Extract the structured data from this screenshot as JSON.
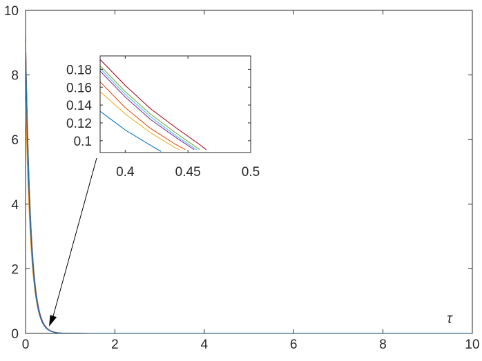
{
  "chart_data": [
    {
      "type": "line",
      "title": "",
      "xlabel": "τ",
      "ylabel": "",
      "xlim": [
        0,
        10
      ],
      "ylim": [
        0,
        10
      ],
      "xticks": [
        0,
        2,
        4,
        6,
        8,
        10
      ],
      "yticks": [
        0,
        2,
        4,
        6,
        8,
        10
      ],
      "grid": false,
      "legend": "none",
      "series_model": "y = y0 * exp(-k * tau)",
      "series": [
        {
          "color": "#a2142f",
          "y0": 9.3,
          "k": 8.38
        },
        {
          "color": "#77ac30",
          "y0": 9.0,
          "k": 8.35
        },
        {
          "color": "#4dbeee",
          "y0": 8.8,
          "k": 8.34
        },
        {
          "color": "#7e2f8e",
          "y0": 8.6,
          "k": 8.33
        },
        {
          "color": "#edb120",
          "y0": 7.2,
          "k": 8.18
        },
        {
          "color": "#d95319",
          "y0": 8.0,
          "k": 8.37
        },
        {
          "color": "#0072bd",
          "y0": 8.7,
          "k": 8.66
        }
      ],
      "x": [
        0,
        0.02,
        0.05,
        0.08,
        0.12,
        0.16,
        0.2,
        0.25,
        0.3,
        0.35,
        0.4,
        0.45,
        0.5,
        0.6,
        0.7,
        0.8,
        1.0,
        1.5,
        2,
        3,
        4,
        5,
        6,
        7,
        8,
        9,
        10
      ]
    },
    {
      "type": "line",
      "title": "",
      "xlim": [
        0.38,
        0.5
      ],
      "ylim": [
        0.08675,
        0.195
      ],
      "xticks": [
        0.4,
        0.45,
        0.5
      ],
      "xticklabels": [
        "0.4",
        "0.45",
        "0.5"
      ],
      "yticks": [
        0.1,
        0.12,
        0.14,
        0.16,
        0.18
      ],
      "yticklabels": [
        "0.1",
        "0.12",
        "0.14",
        "0.16",
        "0.18"
      ],
      "grid": false,
      "series": [
        {
          "color": "#a2142f",
          "x": [
            0.38,
            0.4,
            0.42,
            0.44,
            0.46,
            0.4645
          ],
          "y": [
            0.191,
            0.162,
            0.136,
            0.115,
            0.095,
            0.09
          ]
        },
        {
          "color": "#77ac30",
          "x": [
            0.38,
            0.4,
            0.42,
            0.44,
            0.4595
          ],
          "y": [
            0.184,
            0.155,
            0.13,
            0.109,
            0.09
          ]
        },
        {
          "color": "#4dbeee",
          "x": [
            0.38,
            0.4,
            0.42,
            0.44,
            0.457
          ],
          "y": [
            0.181,
            0.152,
            0.127,
            0.106,
            0.09
          ]
        },
        {
          "color": "#7e2f8e",
          "x": [
            0.38,
            0.4,
            0.42,
            0.44,
            0.455
          ],
          "y": [
            0.178,
            0.149,
            0.124,
            0.104,
            0.09
          ]
        },
        {
          "color": "#edb120",
          "x": [
            0.38,
            0.4,
            0.42,
            0.44,
            0.4435
          ],
          "y": [
            0.155,
            0.13,
            0.109,
            0.092,
            0.09
          ]
        },
        {
          "color": "#d95319",
          "x": [
            0.38,
            0.4,
            0.42,
            0.44,
            0.448
          ],
          "y": [
            0.166,
            0.137,
            0.114,
            0.096,
            0.09
          ]
        },
        {
          "color": "#0072bd",
          "x": [
            0.38,
            0.4,
            0.42,
            0.4285
          ],
          "y": [
            0.133,
            0.112,
            0.095,
            0.088
          ]
        }
      ]
    }
  ]
}
